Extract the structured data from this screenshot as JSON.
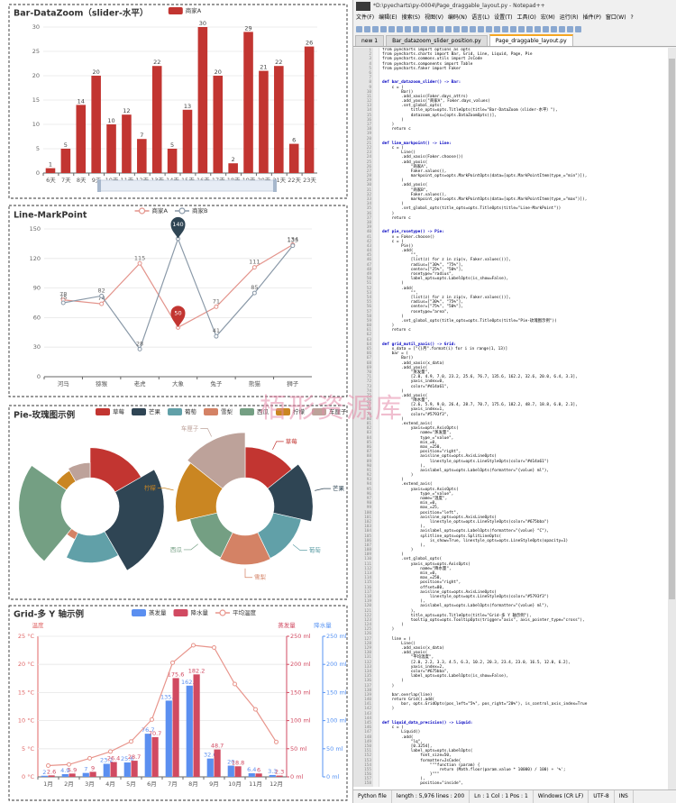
{
  "chart_data": [
    {
      "type": "bar",
      "title": "Bar-DataZoom（slider-水平）",
      "categories": [
        "6天",
        "7天",
        "8天",
        "9天",
        "10天",
        "11天",
        "12天",
        "13天",
        "14天",
        "15天",
        "16天",
        "17天",
        "18天",
        "19天",
        "20天",
        "21天",
        "22天",
        "23天"
      ],
      "series": [
        {
          "name": "商家A",
          "color": "#c23531",
          "values": [
            1,
            5,
            14,
            20,
            10,
            12,
            7,
            22,
            5,
            13,
            30,
            20,
            2,
            29,
            21,
            22,
            6,
            26
          ]
        }
      ],
      "ylim": [
        0,
        30
      ],
      "yticks": [
        0,
        5,
        10,
        15,
        20,
        25,
        30
      ],
      "grid": true,
      "data_labels": true,
      "datazoom": true
    },
    {
      "type": "line",
      "title": "Line-MarkPoint",
      "categories": [
        "河马",
        "猕猴",
        "老虎",
        "大象",
        "兔子",
        "熊猫",
        "狮子"
      ],
      "series": [
        {
          "name": "商家A",
          "color": "#e3948c",
          "values": [
            78,
            74,
            115,
            50,
            71,
            111,
            134
          ],
          "markpoint": {
            "type": "min",
            "color": "#c23531"
          }
        },
        {
          "name": "商家B",
          "color": "#8a99a8",
          "values": [
            75,
            82,
            28,
            140,
            41,
            85,
            133
          ],
          "markpoint": {
            "type": "max",
            "color": "#2f4554"
          }
        }
      ],
      "ylim": [
        0,
        150
      ],
      "yticks": [
        0,
        30,
        60,
        90,
        120,
        150
      ],
      "grid": true,
      "data_labels": true
    },
    {
      "type": "pie",
      "title": "Pie-玫瑰图示例",
      "categories": [
        "草莓",
        "芒果",
        "葡萄",
        "雪梨",
        "西瓜",
        "柠檬",
        "车厘子"
      ],
      "colors": [
        "#c23531",
        "#2f4554",
        "#61a0a8",
        "#d48265",
        "#749f83",
        "#ca8622",
        "#bda29a"
      ],
      "pies": [
        {
          "rosetype": "radius",
          "show_labels": false,
          "values": [
            60,
            90,
            55,
            15,
            85,
            25,
            30
          ]
        },
        {
          "rosetype": "area",
          "show_labels": true,
          "values": [
            75,
            95,
            70,
            72,
            68,
            100,
            110
          ]
        }
      ]
    },
    {
      "type": "bar",
      "title": "Grid-多 Y 轴示例",
      "categories": [
        "1月",
        "2月",
        "3月",
        "4月",
        "5月",
        "6月",
        "7月",
        "8月",
        "9月",
        "10月",
        "11月",
        "12月"
      ],
      "series": [
        {
          "name": "蒸发量",
          "color": "#5b8ff0",
          "axis": "y3",
          "values": [
            2.0,
            4.9,
            7.0,
            23.2,
            25.6,
            76.7,
            135.6,
            162.2,
            32.6,
            20.0,
            6.4,
            3.3
          ]
        },
        {
          "name": "降水量",
          "color": "#d14a61",
          "axis": "y2",
          "values": [
            2.6,
            5.9,
            9.0,
            26.4,
            28.7,
            70.7,
            175.6,
            182.2,
            48.7,
            18.8,
            6.0,
            2.3
          ]
        },
        {
          "name": "平均温度",
          "type": "line",
          "color": "#e8958c",
          "axis": "y",
          "data_labels": false,
          "values": [
            2.0,
            2.2,
            3.3,
            4.5,
            6.3,
            10.2,
            20.3,
            23.4,
            23.0,
            16.5,
            12.0,
            6.2
          ]
        }
      ],
      "ylabel": "温度",
      "y2label": "蒸发量",
      "y3label": "降水量",
      "ylim": [
        0,
        25
      ],
      "yticks": [
        {
          "value": 0,
          "label": "0 °C"
        },
        {
          "value": 5,
          "label": "5 °C"
        },
        {
          "value": 10,
          "label": "10 °C"
        },
        {
          "value": 15,
          "label": "15 °C"
        },
        {
          "value": 20,
          "label": "20 °C"
        },
        {
          "value": 25,
          "label": "25 °C"
        }
      ],
      "y2lim": [
        0,
        250
      ],
      "y2ticks": [
        {
          "value": 0,
          "label": "0 ml"
        },
        {
          "value": 50,
          "label": "50 ml"
        },
        {
          "value": 100,
          "label": "100 ml"
        },
        {
          "value": 150,
          "label": "150 ml"
        },
        {
          "value": 200,
          "label": "200 ml"
        },
        {
          "value": 250,
          "label": "250 ml"
        }
      ],
      "y3lim": [
        0,
        250
      ],
      "y3ticks": [
        {
          "value": 0,
          "label": "0 ml"
        },
        {
          "value": 50,
          "label": "50 ml"
        },
        {
          "value": 100,
          "label": "100 ml"
        },
        {
          "value": 150,
          "label": "150 ml"
        },
        {
          "value": 200,
          "label": "200 ml"
        },
        {
          "value": 250,
          "label": "250 ml"
        }
      ],
      "grid": true,
      "data_labels": true
    }
  ],
  "watermark": "栢形资源库",
  "editor": {
    "title": "*D:\\pyecharts\\py-0004\\Page_draggable_layout.py - Notepad++",
    "menu": [
      "文件(F)",
      "编辑(E)",
      "搜索(S)",
      "视图(V)",
      "编码(N)",
      "语言(L)",
      "设置(T)",
      "工具(O)",
      "宏(M)",
      "运行(R)",
      "插件(P)",
      "窗口(W)",
      "?"
    ],
    "tabs": [
      "new 1",
      "Bar_datazoom_slider_position.py",
      "Page_draggable_layout.py"
    ],
    "lines": [
      [
        1,
        "from pyecharts import options as opts"
      ],
      [
        2,
        "from pyecharts.charts import Bar, Grid, Line, Liquid, Page, Pie"
      ],
      [
        3,
        "from pyecharts.commons.utils import JsCode"
      ],
      [
        4,
        "from pyecharts.components import Table"
      ],
      [
        5,
        "from pyecharts.faker import Faker"
      ],
      [
        6
      ],
      [
        7
      ],
      [
        8,
        "def bar_datazoom_slider() -> Bar:"
      ],
      [
        9,
        "    c = ("
      ],
      [
        10,
        "        Bar()"
      ],
      [
        11,
        "        .add_xaxis(Faker.days_attrs)"
      ],
      [
        12,
        "        .add_yaxis(\"商家A\", Faker.days_values)"
      ],
      [
        13,
        "        .set_global_opts("
      ],
      [
        14,
        "            title_opts=opts.TitleOpts(title=\"Bar-DataZoom（slider-水平）\"),"
      ],
      [
        15,
        "            datazoom_opts=[opts.DataZoomOpts()],"
      ],
      [
        16,
        "        )"
      ],
      [
        17,
        "    )"
      ],
      [
        18,
        "    return c"
      ],
      [
        19
      ],
      [
        20
      ],
      [
        21,
        "def line_markpoint() -> Line:"
      ],
      [
        22,
        "    c = ("
      ],
      [
        23,
        "        Line()"
      ],
      [
        24,
        "        .add_xaxis(Faker.choose())"
      ],
      [
        25,
        "        .add_yaxis("
      ],
      [
        26,
        "            \"商家A\","
      ],
      [
        27,
        "            Faker.values(),"
      ],
      [
        28,
        "            markpoint_opts=opts.MarkPointOpts(data=[opts.MarkPointItem(type_=\"min\")]),"
      ],
      [
        29,
        "        )"
      ],
      [
        30,
        "        .add_yaxis("
      ],
      [
        31,
        "            \"商家B\","
      ],
      [
        32,
        "            Faker.values(),"
      ],
      [
        33,
        "            markpoint_opts=opts.MarkPointOpts(data=[opts.MarkPointItem(type_=\"max\")]),"
      ],
      [
        34,
        "        )"
      ],
      [
        35,
        "        .set_global_opts(title_opts=opts.TitleOpts(title=\"Line-MarkPoint\"))"
      ],
      [
        36,
        "    )"
      ],
      [
        37,
        "    return c"
      ],
      [
        38
      ],
      [
        39
      ],
      [
        40,
        "def pie_rosetype() -> Pie:"
      ],
      [
        41,
        "    v = Faker.choose()"
      ],
      [
        42,
        "    c = ("
      ],
      [
        43,
        "        Pie()"
      ],
      [
        44,
        "        .add("
      ],
      [
        45,
        "            \"\","
      ],
      [
        46,
        "            [list(z) for z in zip(v, Faker.values())],"
      ],
      [
        47,
        "            radius=[\"30%\", \"75%\"],"
      ],
      [
        48,
        "            center=[\"25%\", \"50%\"],"
      ],
      [
        49,
        "            rosetype=\"radius\","
      ],
      [
        50,
        "            label_opts=opts.LabelOpts(is_show=False),"
      ],
      [
        51,
        "        )"
      ],
      [
        52,
        "        .add("
      ],
      [
        53,
        "            \"\","
      ],
      [
        54,
        "            [list(z) for z in zip(v, Faker.values())],"
      ],
      [
        55,
        "            radius=[\"30%\", \"75%\"],"
      ],
      [
        56,
        "            center=[\"75%\", \"50%\"],"
      ],
      [
        57,
        "            rosetype=\"area\","
      ],
      [
        58,
        "        )"
      ],
      [
        59,
        "        .set_global_opts(title_opts=opts.TitleOpts(title=\"Pie-玫瑰图示例\"))"
      ],
      [
        60,
        "    )"
      ],
      [
        61,
        "    return c"
      ],
      [
        62
      ],
      [
        63
      ],
      [
        64,
        "def grid_mutil_yaxis() -> Grid:"
      ],
      [
        65,
        "    x_data = [\"{}月\".format(i) for i in range(1, 13)]"
      ],
      [
        66,
        "    bar = ("
      ],
      [
        67,
        "        Bar()"
      ],
      [
        68,
        "        .add_xaxis(x_data)"
      ],
      [
        69,
        "        .add_yaxis("
      ],
      [
        70,
        "            \"蒸发量\","
      ],
      [
        71,
        "            [2.0, 4.9, 7.0, 23.2, 25.6, 76.7, 135.6, 162.2, 32.6, 20.0, 6.4, 3.3],"
      ],
      [
        72,
        "            yaxis_index=0,"
      ],
      [
        73,
        "            color=\"#d14a61\","
      ],
      [
        74,
        "        )"
      ],
      [
        75,
        "        .add_yaxis("
      ],
      [
        76,
        "            \"降水量\","
      ],
      [
        77,
        "            [2.6, 5.9, 9.0, 26.4, 28.7, 70.7, 175.6, 182.2, 48.7, 18.8, 6.0, 2.3],"
      ],
      [
        78,
        "            yaxis_index=1,"
      ],
      [
        79,
        "            color=\"#5793f3\","
      ],
      [
        80,
        "        )"
      ],
      [
        81,
        "        .extend_axis("
      ],
      [
        82,
        "            yaxis=opts.AxisOpts("
      ],
      [
        83,
        "                name=\"蒸发量\","
      ],
      [
        84,
        "                type_=\"value\","
      ],
      [
        85,
        "                min_=0,"
      ],
      [
        86,
        "                max_=250,"
      ],
      [
        87,
        "                position=\"right\","
      ],
      [
        88,
        "                axisline_opts=opts.AxisLineOpts("
      ],
      [
        89,
        "                    linestyle_opts=opts.LineStyleOpts(color=\"#d14a61\")"
      ],
      [
        90,
        "                ),"
      ],
      [
        91,
        "                axislabel_opts=opts.LabelOpts(formatter=\"{value} ml\"),"
      ],
      [
        92,
        "            )"
      ],
      [
        93,
        "        )"
      ],
      [
        94,
        "        .extend_axis("
      ],
      [
        95,
        "            yaxis=opts.AxisOpts("
      ],
      [
        96,
        "                type_=\"value\","
      ],
      [
        97,
        "                name=\"温度\","
      ],
      [
        98,
        "                min_=0,"
      ],
      [
        99,
        "                max_=25,"
      ],
      [
        100,
        "                position=\"left\","
      ],
      [
        101,
        "                axisline_opts=opts.AxisLineOpts("
      ],
      [
        102,
        "                    linestyle_opts=opts.LineStyleOpts(color=\"#675bba\")"
      ],
      [
        103,
        "                ),"
      ],
      [
        104,
        "                axislabel_opts=opts.LabelOpts(formatter=\"{value} °C\"),"
      ],
      [
        105,
        "                splitline_opts=opts.SplitLineOpts("
      ],
      [
        106,
        "                    is_show=True, linestyle_opts=opts.LineStyleOpts(opacity=1)"
      ],
      [
        107,
        "                ),"
      ],
      [
        108,
        "            )"
      ],
      [
        109,
        "        )"
      ],
      [
        110,
        "        .set_global_opts("
      ],
      [
        111,
        "            yaxis_opts=opts.AxisOpts("
      ],
      [
        112,
        "                name=\"降水量\","
      ],
      [
        113,
        "                min_=0,"
      ],
      [
        114,
        "                max_=250,"
      ],
      [
        115,
        "                position=\"right\","
      ],
      [
        116,
        "                offset=80,"
      ],
      [
        117,
        "                axisline_opts=opts.AxisLineOpts("
      ],
      [
        118,
        "                    linestyle_opts=opts.LineStyleOpts(color=\"#5793f3\")"
      ],
      [
        119,
        "                ),"
      ],
      [
        120,
        "                axislabel_opts=opts.LabelOpts(formatter=\"{value} ml\"),"
      ],
      [
        121,
        "            ),"
      ],
      [
        122,
        "            title_opts=opts.TitleOpts(title=\"Grid-多 Y 轴示例\"),"
      ],
      [
        123,
        "            tooltip_opts=opts.TooltipOpts(trigger=\"axis\", axis_pointer_type=\"cross\"),"
      ],
      [
        124,
        "        )"
      ],
      [
        125,
        "    )"
      ],
      [
        126
      ],
      [
        127,
        "    line = ("
      ],
      [
        128,
        "        Line()"
      ],
      [
        129,
        "        .add_xaxis(x_data)"
      ],
      [
        130,
        "        .add_yaxis("
      ],
      [
        131,
        "            \"平均温度\","
      ],
      [
        132,
        "            [2.0, 2.2, 3.3, 4.5, 6.3, 10.2, 20.3, 23.4, 23.0, 16.5, 12.0, 6.2],"
      ],
      [
        133,
        "            yaxis_index=2,"
      ],
      [
        134,
        "            color=\"#675bba\","
      ],
      [
        135,
        "            label_opts=opts.LabelOpts(is_show=False),"
      ],
      [
        136,
        "        )"
      ],
      [
        137,
        "    )"
      ],
      [
        138
      ],
      [
        139,
        "    bar.overlap(line)"
      ],
      [
        140,
        "    return Grid().add("
      ],
      [
        141,
        "        bar, opts.GridOpts(pos_left=\"5%\", pos_right=\"20%\"), is_control_axis_index=True"
      ],
      [
        142,
        "    )"
      ],
      [
        143
      ],
      [
        144
      ],
      [
        145,
        "def liquid_data_precision() -> Liquid:"
      ],
      [
        146,
        "    c = ("
      ],
      [
        147,
        "        Liquid()"
      ],
      [
        148,
        "        .add("
      ],
      [
        149,
        "            \"lq\","
      ],
      [
        150,
        "            [0.3254],"
      ],
      [
        151,
        "            label_opts=opts.LabelOpts("
      ],
      [
        152,
        "                font_size=50,"
      ],
      [
        153,
        "                formatter=JsCode("
      ],
      [
        154,
        "                    \"\"\"function (param) {"
      ],
      [
        155,
        "                        return (Math.floor(param.value * 10000) / 100) + '%';"
      ],
      [
        156,
        "                    }\"\"\""
      ],
      [
        157,
        "                ),"
      ],
      [
        158,
        "                position=\"inside\","
      ]
    ],
    "status": [
      "Python file",
      "length : 5,976    lines : 200",
      "Ln : 1    Col : 1    Pos : 1",
      "Windows (CR LF)",
      "UTF-8",
      "INS"
    ]
  }
}
